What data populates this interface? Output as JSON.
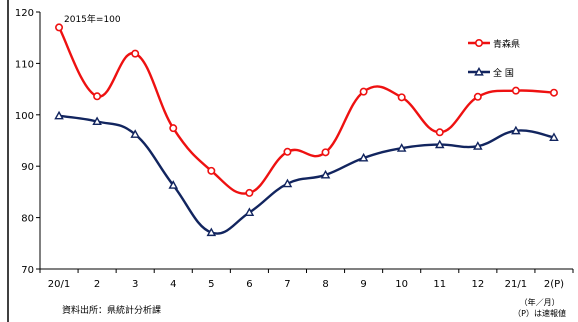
{
  "chart_data": {
    "type": "line",
    "title": "",
    "base_note": "2015年=100",
    "categories": [
      "20/1",
      "2",
      "3",
      "4",
      "5",
      "6",
      "7",
      "8",
      "9",
      "10",
      "11",
      "12",
      "21/1",
      "2(P)"
    ],
    "ylim": [
      70,
      120
    ],
    "yticks": [
      70,
      80,
      90,
      100,
      110,
      120
    ],
    "grid": false,
    "legend": "right",
    "series": [
      {
        "name": "青森県",
        "color": "#ee1111",
        "marker": "circle",
        "values": [
          117.0,
          103.6,
          111.9,
          97.4,
          89.1,
          84.8,
          92.8,
          92.7,
          104.5,
          103.4,
          96.6,
          103.5,
          104.7,
          104.3
        ]
      },
      {
        "name": "全 国",
        "color": "#12255f",
        "marker": "triangle",
        "values": [
          99.8,
          98.7,
          96.2,
          86.3,
          77.1,
          81.0,
          86.6,
          88.3,
          91.6,
          93.5,
          94.2,
          93.9,
          96.9,
          95.6
        ]
      }
    ]
  },
  "source": "資料出所：県統計分析課",
  "unit_note": "（年／月）",
  "prelim_note": "（P）は速報値"
}
